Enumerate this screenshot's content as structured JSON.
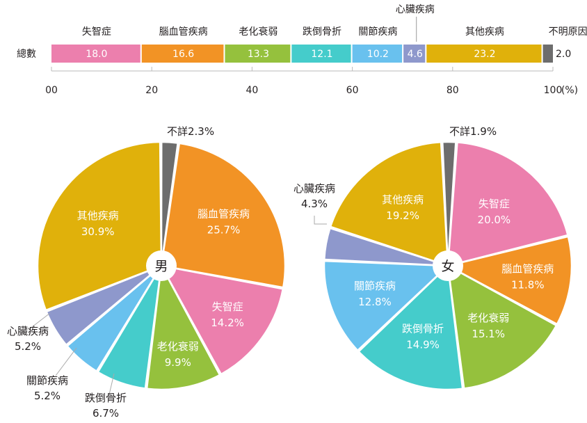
{
  "chart_data": [
    {
      "type": "bar",
      "orientation": "horizontal",
      "stacked": true,
      "categories": [
        "總數"
      ],
      "series": [
        {
          "name": "失智症",
          "values": [
            18.0
          ],
          "color": "#ec7fad"
        },
        {
          "name": "腦血管疾病",
          "values": [
            16.6
          ],
          "color": "#f29325"
        },
        {
          "name": "老化衰弱",
          "values": [
            13.3
          ],
          "color": "#95c13d"
        },
        {
          "name": "跌倒骨折",
          "values": [
            12.1
          ],
          "color": "#45cccb"
        },
        {
          "name": "關節疾病",
          "values": [
            10.2
          ],
          "color": "#69c1ee"
        },
        {
          "name": "心臟疾病",
          "values": [
            4.6
          ],
          "color": "#8e98cc"
        },
        {
          "name": "其他疾病",
          "values": [
            23.2
          ],
          "color": "#e0b10b"
        },
        {
          "name": "不明原因",
          "values": [
            2.0
          ],
          "color": "#6d6d6d"
        }
      ],
      "value_labels": [
        "18.0",
        "16.6",
        "13.3",
        "12.1",
        "10.2",
        "4.6",
        "23.2",
        "2.0"
      ],
      "xlim": [
        0,
        100
      ],
      "x_ticks": [
        "00",
        "20",
        "40",
        "60",
        "80",
        "100"
      ],
      "unit": "(%)"
    },
    {
      "type": "pie",
      "center_label": "男",
      "slices": [
        {
          "label": "腦血管疾病",
          "display": "25.7%",
          "value": 25.7,
          "color": "#f29325",
          "label_color": "#ffffff"
        },
        {
          "label": "失智症",
          "display": "14.2%",
          "value": 14.2,
          "color": "#ec7fad",
          "label_color": "#ffffff"
        },
        {
          "label": "老化衰弱",
          "display": "9.9%",
          "value": 9.9,
          "color": "#95c13d",
          "label_color": "#ffffff"
        },
        {
          "label": "跌倒骨折",
          "display": "6.7%",
          "value": 6.7,
          "color": "#45cccb",
          "label_color": "#231f20"
        },
        {
          "label": "關節疾病",
          "display": "5.2%",
          "value": 5.2,
          "color": "#69c1ee",
          "label_color": "#231f20"
        },
        {
          "label": "心臟疾病",
          "display": "5.2%",
          "value": 5.2,
          "color": "#8e98cc",
          "label_color": "#231f20"
        },
        {
          "label": "其他疾病",
          "display": "30.9%",
          "value": 30.9,
          "color": "#e0b10b",
          "label_color": "#ffffff"
        },
        {
          "label": "不詳",
          "display": "2.3%",
          "value": 2.3,
          "color": "#6d6d6d",
          "label_color": "#231f20"
        }
      ]
    },
    {
      "type": "pie",
      "center_label": "女",
      "slices": [
        {
          "label": "失智症",
          "display": "20.0%",
          "value": 20.0,
          "color": "#ec7fad",
          "label_color": "#ffffff"
        },
        {
          "label": "腦血管疾病",
          "display": "11.8%",
          "value": 11.8,
          "color": "#f29325",
          "label_color": "#ffffff"
        },
        {
          "label": "老化衰弱",
          "display": "15.1%",
          "value": 15.1,
          "color": "#95c13d",
          "label_color": "#ffffff"
        },
        {
          "label": "跌倒骨折",
          "display": "14.9%",
          "value": 14.9,
          "color": "#45cccb",
          "label_color": "#ffffff"
        },
        {
          "label": "關節疾病",
          "display": "12.8%",
          "value": 12.8,
          "color": "#69c1ee",
          "label_color": "#ffffff"
        },
        {
          "label": "心臟疾病",
          "display": "4.3%",
          "value": 4.3,
          "color": "#8e98cc",
          "label_color": "#231f20"
        },
        {
          "label": "其他疾病",
          "display": "19.2%",
          "value": 19.2,
          "color": "#e0b10b",
          "label_color": "#ffffff"
        },
        {
          "label": "不詳",
          "display": "1.9%",
          "value": 1.9,
          "color": "#6d6d6d",
          "label_color": "#231f20"
        }
      ]
    }
  ]
}
